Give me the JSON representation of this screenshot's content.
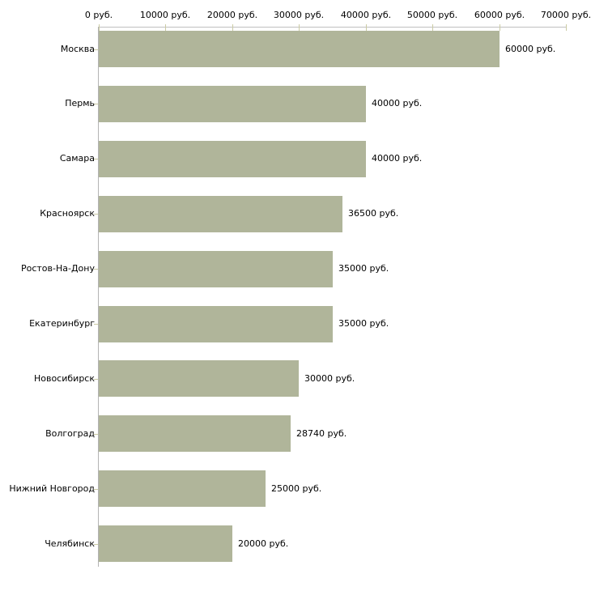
{
  "chart_data": {
    "type": "bar",
    "orientation": "horizontal",
    "title": "",
    "categories": [
      "Москва",
      "Пермь",
      "Самара",
      "Красноярск",
      "Ростов-На-Дону",
      "Екатеринбург",
      "Новосибирск",
      "Волгоград",
      "Нижний Новгород",
      "Челябинск"
    ],
    "values": [
      60000,
      40000,
      40000,
      36500,
      35000,
      35000,
      30000,
      28740,
      25000,
      20000
    ],
    "value_labels": [
      "60000 руб.",
      "40000 руб.",
      "40000 руб.",
      "36500 руб.",
      "35000 руб.",
      "35000 руб.",
      "30000 руб.",
      "28740 руб.",
      "25000 руб.",
      "20000 руб."
    ],
    "x_tick_labels": [
      "0 руб.",
      "10000 руб.",
      "20000 руб.",
      "30000 руб.",
      "40000 руб.",
      "50000 руб.",
      "60000 руб.",
      "70000 руб."
    ],
    "xlim": [
      0,
      70000
    ],
    "unit": "руб.",
    "grid": "off",
    "legend": "none",
    "colors": {
      "bar": "#b0b59a",
      "axis_tick": "#cbcba4",
      "x_axis_line": "#c0c0c0",
      "y_axis_line": "#b3b3b3",
      "text": "#000000",
      "background": "#ffffff"
    }
  }
}
